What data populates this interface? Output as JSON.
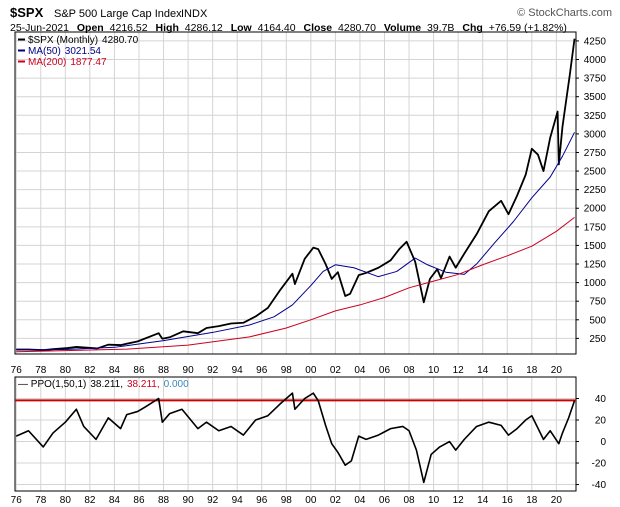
{
  "header": {
    "symbol": "$SPX",
    "name": "S&P 500 Large Cap Index",
    "exchange": "INDX",
    "brand": "© StockCharts.com",
    "date": "25-Jun-2021",
    "open_label": "Open",
    "open": "4216.52",
    "high_label": "High",
    "high": "4286.12",
    "low_label": "Low",
    "low": "4164.40",
    "close_label": "Close",
    "close": "4280.70",
    "volume_label": "Volume",
    "volume": "39.7B",
    "chg_label": "Chg",
    "chg": "+76.59 (+1.82%)"
  },
  "colors": {
    "price": "#000000",
    "ma50": "#00008b",
    "ma200": "#cc0022",
    "ppo": "#000000",
    "ppo_signal": "#cc0022",
    "ppo_hist": "#3a86b8",
    "ppo_threshold": "#cc0000",
    "grid": "#d4d4d4",
    "axis": "#000000"
  },
  "chart_data": [
    {
      "type": "line",
      "title": "",
      "legend_position": "top-left",
      "legend": [
        {
          "label": "$SPX (Monthly)",
          "value": "4280.70",
          "color": "#000000"
        },
        {
          "label": "MA(50)",
          "value": "3021.54",
          "color": "#00008b"
        },
        {
          "label": "MA(200)",
          "value": "1877.47",
          "color": "#cc0022"
        }
      ],
      "x_ticks": [
        "76",
        "78",
        "80",
        "82",
        "84",
        "86",
        "88",
        "90",
        "92",
        "94",
        "96",
        "98",
        "00",
        "02",
        "04",
        "06",
        "08",
        "10",
        "12",
        "14",
        "16",
        "18",
        "20"
      ],
      "x_tick_years": [
        1976,
        1978,
        1980,
        1982,
        1984,
        1986,
        1988,
        1990,
        1992,
        1994,
        1996,
        1998,
        2000,
        2002,
        2004,
        2006,
        2008,
        2010,
        2012,
        2014,
        2016,
        2018,
        2020
      ],
      "xlim": [
        1975.9,
        2021.6
      ],
      "y_ticks": [
        250,
        500,
        750,
        1000,
        1250,
        1500,
        1750,
        2000,
        2250,
        2500,
        2750,
        3000,
        3250,
        3500,
        3750,
        4000,
        4250
      ],
      "ylim": [
        40,
        4370
      ],
      "grid": true,
      "series": [
        {
          "name": "$SPX (Monthly)",
          "x": [
            1976.0,
            1977.0,
            1978.2,
            1979.0,
            1980.2,
            1980.9,
            1982.6,
            1983.5,
            1984.5,
            1985.9,
            1987.6,
            1987.9,
            1988.5,
            1989.6,
            1990.8,
            1991.5,
            1992.5,
            1993.5,
            1994.5,
            1995.5,
            1996.5,
            1997.5,
            1998.5,
            1998.7,
            1999.5,
            2000.2,
            2000.6,
            2001.2,
            2001.7,
            2002.2,
            2002.8,
            2003.2,
            2003.9,
            2004.5,
            2005.5,
            2006.5,
            2007.2,
            2007.8,
            2008.5,
            2009.2,
            2009.7,
            2010.3,
            2010.6,
            2011.3,
            2011.8,
            2012.5,
            2013.5,
            2014.5,
            2015.5,
            2016.1,
            2016.8,
            2017.5,
            2018.0,
            2018.5,
            2018.95,
            2019.5,
            2020.1,
            2020.2,
            2020.5,
            2020.8,
            2021.1,
            2021.48
          ],
          "values": [
            100,
            100,
            92,
            105,
            120,
            135,
            115,
            165,
            160,
            210,
            320,
            245,
            265,
            345,
            320,
            390,
            415,
            450,
            460,
            545,
            660,
            900,
            1120,
            980,
            1320,
            1470,
            1450,
            1250,
            1050,
            1140,
            820,
            850,
            1100,
            1130,
            1200,
            1300,
            1450,
            1550,
            1280,
            735,
            1050,
            1180,
            1060,
            1350,
            1200,
            1390,
            1650,
            1960,
            2100,
            1920,
            2170,
            2450,
            2800,
            2720,
            2500,
            2950,
            3300,
            2590,
            3100,
            3450,
            3800,
            4280
          ]
        },
        {
          "name": "MA(50)",
          "x": [
            1976.0,
            1980.0,
            1984.0,
            1988.0,
            1992.0,
            1995.0,
            1997.0,
            1998.5,
            2000.0,
            2001.0,
            2002.0,
            2003.5,
            2005.5,
            2007.0,
            2008.5,
            2009.5,
            2011.0,
            2012.5,
            2013.5,
            2015.0,
            2016.5,
            2018.0,
            2019.5,
            2020.5,
            2021.48
          ],
          "values": [
            95,
            100,
            130,
            220,
            330,
            430,
            540,
            700,
            960,
            1150,
            1240,
            1200,
            1080,
            1150,
            1330,
            1240,
            1140,
            1110,
            1250,
            1540,
            1820,
            2140,
            2420,
            2700,
            3021
          ]
        },
        {
          "name": "MA(200)",
          "x": [
            1976.0,
            1980.0,
            1985.0,
            1990.0,
            1995.0,
            1998.0,
            2000.0,
            2002.0,
            2004.0,
            2006.0,
            2008.0,
            2010.0,
            2012.0,
            2014.0,
            2016.0,
            2018.0,
            2020.0,
            2021.48
          ],
          "values": [
            70,
            85,
            105,
            160,
            270,
            390,
            500,
            620,
            700,
            800,
            930,
            1020,
            1110,
            1240,
            1360,
            1490,
            1690,
            1877
          ]
        }
      ]
    },
    {
      "type": "line",
      "title": "",
      "legend_position": "top-left",
      "legend": [
        {
          "label": "PPO(1,50,1)",
          "value": "38.211",
          "color": "#000000"
        },
        {
          "label": "",
          "value": "38.211",
          "color": "#cc0022"
        },
        {
          "label": "",
          "value": "0.000",
          "color": "#3a86b8"
        }
      ],
      "x_ticks": [
        "76",
        "78",
        "80",
        "82",
        "84",
        "86",
        "88",
        "90",
        "92",
        "94",
        "96",
        "98",
        "00",
        "02",
        "04",
        "06",
        "08",
        "10",
        "12",
        "14",
        "16",
        "18",
        "20"
      ],
      "xlim": [
        1975.9,
        2021.6
      ],
      "y_ticks": [
        -40,
        -20,
        0,
        20,
        40
      ],
      "ylim": [
        -46,
        60
      ],
      "grid": true,
      "threshold": 38.211,
      "series": [
        {
          "name": "PPO(1,50,1)",
          "x": [
            1976.0,
            1977.0,
            1978.2,
            1979.0,
            1980.0,
            1980.9,
            1981.5,
            1982.5,
            1983.5,
            1984.5,
            1985.0,
            1985.9,
            1986.5,
            1987.6,
            1987.9,
            1988.5,
            1989.5,
            1990.8,
            1991.5,
            1992.5,
            1993.5,
            1994.5,
            1995.5,
            1996.5,
            1997.5,
            1998.5,
            1998.7,
            1999.5,
            2000.2,
            2000.6,
            2001.2,
            2001.7,
            2002.2,
            2002.8,
            2003.3,
            2003.9,
            2004.5,
            2005.5,
            2006.5,
            2007.5,
            2008.0,
            2008.6,
            2009.2,
            2009.8,
            2010.5,
            2011.3,
            2011.8,
            2012.5,
            2013.5,
            2014.5,
            2015.5,
            2016.1,
            2016.8,
            2017.5,
            2018.0,
            2018.95,
            2019.5,
            2020.2,
            2020.5,
            2021.0,
            2021.48
          ],
          "values": [
            5,
            10,
            -5,
            8,
            18,
            30,
            14,
            2,
            22,
            12,
            25,
            28,
            32,
            40,
            18,
            26,
            30,
            12,
            18,
            10,
            14,
            6,
            20,
            24,
            35,
            45,
            30,
            40,
            45,
            38,
            15,
            -2,
            -10,
            -22,
            -18,
            5,
            2,
            6,
            12,
            14,
            10,
            -8,
            -38,
            -12,
            -5,
            0,
            -8,
            2,
            14,
            18,
            15,
            6,
            12,
            20,
            24,
            2,
            10,
            -2,
            8,
            22,
            38
          ]
        }
      ]
    }
  ]
}
